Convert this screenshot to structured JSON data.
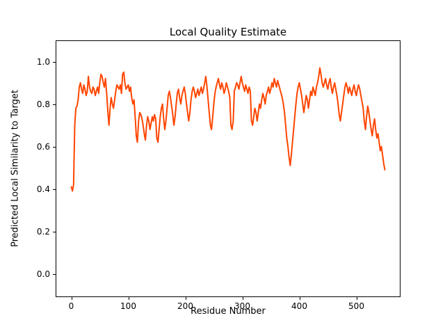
{
  "chart_data": {
    "type": "line",
    "title": "Local Quality Estimate",
    "xlabel": "Residue Number",
    "ylabel": "Predicted Local Similarity to Target",
    "line_color": "#FF4500",
    "line_width": 2,
    "xlim": [
      -27.5,
      577.5
    ],
    "ylim": [
      -0.11,
      1.1
    ],
    "xticks": [
      0,
      100,
      200,
      300,
      400,
      500
    ],
    "xtick_labels": [
      "0",
      "100",
      "200",
      "300",
      "400",
      "500"
    ],
    "yticks": [
      0.0,
      0.2,
      0.4,
      0.6,
      0.8,
      1.0
    ],
    "ytick_labels": [
      "0.0",
      "0.2",
      "0.4",
      "0.6",
      "0.8",
      "1.0"
    ],
    "grid": false,
    "legend": "none",
    "x_start": 0,
    "x_step": 2,
    "values": [
      0.41,
      0.39,
      0.42,
      0.7,
      0.78,
      0.79,
      0.82,
      0.88,
      0.9,
      0.87,
      0.85,
      0.89,
      0.87,
      0.84,
      0.86,
      0.93,
      0.88,
      0.86,
      0.85,
      0.88,
      0.87,
      0.84,
      0.86,
      0.88,
      0.85,
      0.9,
      0.94,
      0.93,
      0.9,
      0.88,
      0.92,
      0.85,
      0.77,
      0.7,
      0.78,
      0.83,
      0.8,
      0.78,
      0.82,
      0.86,
      0.89,
      0.88,
      0.87,
      0.89,
      0.85,
      0.94,
      0.95,
      0.9,
      0.87,
      0.88,
      0.89,
      0.86,
      0.88,
      0.83,
      0.8,
      0.82,
      0.74,
      0.65,
      0.62,
      0.72,
      0.76,
      0.75,
      0.73,
      0.7,
      0.66,
      0.63,
      0.7,
      0.74,
      0.72,
      0.68,
      0.71,
      0.74,
      0.72,
      0.75,
      0.73,
      0.64,
      0.62,
      0.68,
      0.74,
      0.78,
      0.8,
      0.73,
      0.68,
      0.72,
      0.78,
      0.84,
      0.86,
      0.83,
      0.79,
      0.75,
      0.7,
      0.74,
      0.8,
      0.85,
      0.87,
      0.83,
      0.8,
      0.84,
      0.86,
      0.88,
      0.85,
      0.8,
      0.76,
      0.72,
      0.76,
      0.82,
      0.86,
      0.88,
      0.86,
      0.83,
      0.85,
      0.87,
      0.84,
      0.86,
      0.88,
      0.85,
      0.87,
      0.9,
      0.93,
      0.88,
      0.82,
      0.76,
      0.7,
      0.68,
      0.74,
      0.8,
      0.85,
      0.88,
      0.9,
      0.92,
      0.89,
      0.87,
      0.9,
      0.88,
      0.85,
      0.87,
      0.9,
      0.88,
      0.86,
      0.83,
      0.7,
      0.68,
      0.72,
      0.86,
      0.88,
      0.9,
      0.89,
      0.87,
      0.9,
      0.93,
      0.9,
      0.88,
      0.86,
      0.89,
      0.87,
      0.85,
      0.88,
      0.86,
      0.72,
      0.7,
      0.74,
      0.78,
      0.76,
      0.72,
      0.76,
      0.8,
      0.78,
      0.82,
      0.85,
      0.83,
      0.8,
      0.84,
      0.86,
      0.88,
      0.85,
      0.87,
      0.9,
      0.88,
      0.92,
      0.9,
      0.88,
      0.91,
      0.89,
      0.87,
      0.85,
      0.83,
      0.8,
      0.76,
      0.7,
      0.64,
      0.6,
      0.55,
      0.51,
      0.56,
      0.62,
      0.68,
      0.74,
      0.8,
      0.85,
      0.88,
      0.9,
      0.87,
      0.84,
      0.8,
      0.76,
      0.8,
      0.84,
      0.82,
      0.78,
      0.82,
      0.86,
      0.84,
      0.88,
      0.86,
      0.84,
      0.88,
      0.9,
      0.93,
      0.97,
      0.94,
      0.9,
      0.88,
      0.9,
      0.92,
      0.89,
      0.87,
      0.9,
      0.92,
      0.88,
      0.85,
      0.88,
      0.9,
      0.87,
      0.84,
      0.8,
      0.75,
      0.72,
      0.76,
      0.8,
      0.84,
      0.88,
      0.9,
      0.88,
      0.85,
      0.88,
      0.86,
      0.84,
      0.87,
      0.89,
      0.86,
      0.84,
      0.87,
      0.89,
      0.87,
      0.84,
      0.81,
      0.78,
      0.72,
      0.68,
      0.74,
      0.79,
      0.76,
      0.72,
      0.68,
      0.65,
      0.7,
      0.73,
      0.68,
      0.64,
      0.66,
      0.62,
      0.58,
      0.6,
      0.56,
      0.52,
      0.49
    ]
  }
}
